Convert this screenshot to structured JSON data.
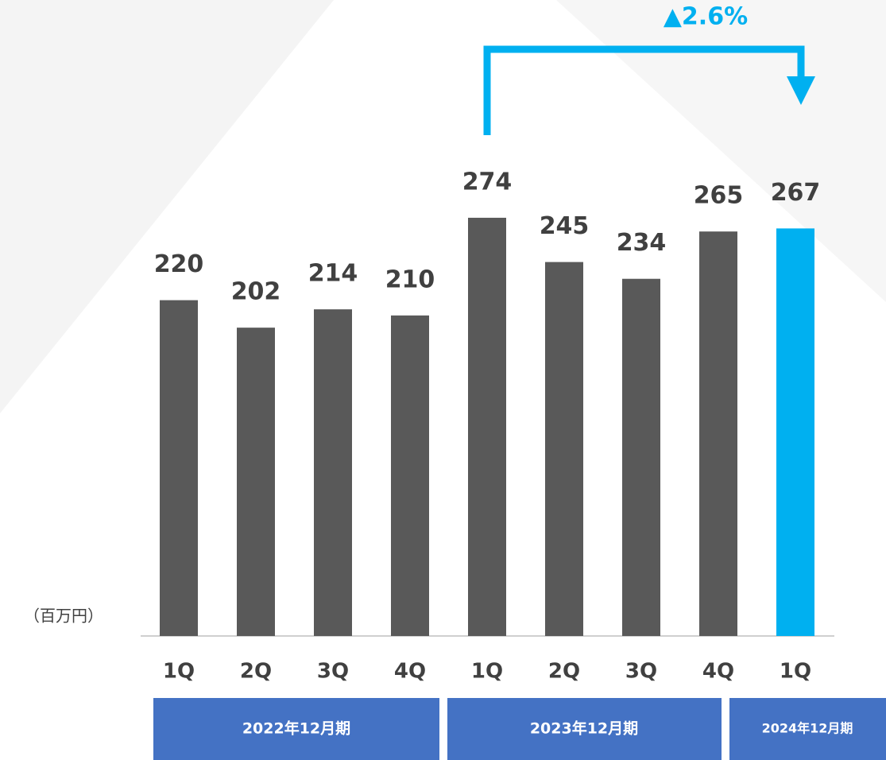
{
  "chart_data": {
    "type": "bar",
    "unit_label": "（百万円）",
    "annotation": "▲2.6%",
    "categories": [
      "1Q",
      "2Q",
      "3Q",
      "4Q",
      "1Q",
      "2Q",
      "3Q",
      "4Q",
      "1Q"
    ],
    "values": [
      220,
      202,
      214,
      210,
      274,
      245,
      234,
      265,
      267
    ],
    "colors": [
      "#595959",
      "#595959",
      "#595959",
      "#595959",
      "#595959",
      "#595959",
      "#595959",
      "#595959",
      "#00b0f0"
    ],
    "ylim": [
      0,
      300
    ],
    "groups": [
      "2022年12月期",
      "2023年12月期",
      "2024年12月期"
    ]
  }
}
